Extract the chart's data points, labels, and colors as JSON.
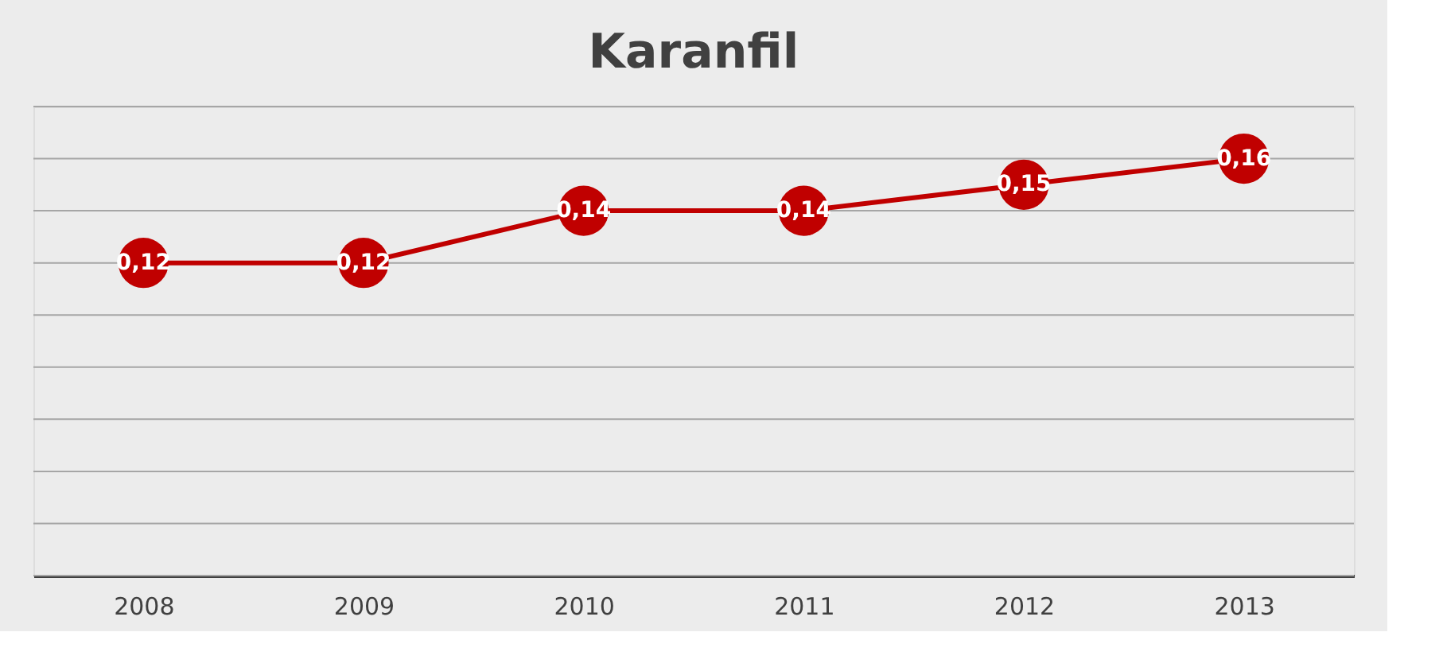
{
  "chart_data": {
    "type": "line",
    "title": "Karanfil",
    "categories": [
      "2008",
      "2009",
      "2010",
      "2011",
      "2012",
      "2013"
    ],
    "series": [
      {
        "color": "#c00000",
        "values": [
          0.12,
          0.12,
          0.14,
          0.14,
          0.15,
          0.16
        ],
        "value_labels": [
          "0,12",
          "0,12",
          "0,14",
          "0,14",
          "0,15",
          "0,16"
        ]
      }
    ],
    "ylim": [
      0,
      0.18
    ],
    "yticks": [
      {
        "value": 0,
        "label": null
      },
      {
        "value": 0.02,
        "label": null
      },
      {
        "value": 0.04,
        "label": null
      },
      {
        "value": 0.06,
        "label": null
      },
      {
        "value": 0.08,
        "label": null
      },
      {
        "value": 0.1,
        "label": null
      },
      {
        "value": 0.12,
        "label": null
      },
      {
        "value": 0.14,
        "label": null
      },
      {
        "value": 0.16,
        "label": null
      },
      {
        "value": 0.18,
        "label": null
      }
    ],
    "grid": "y",
    "tick_labels": "x",
    "marker": "circle",
    "line_style": "solid"
  }
}
